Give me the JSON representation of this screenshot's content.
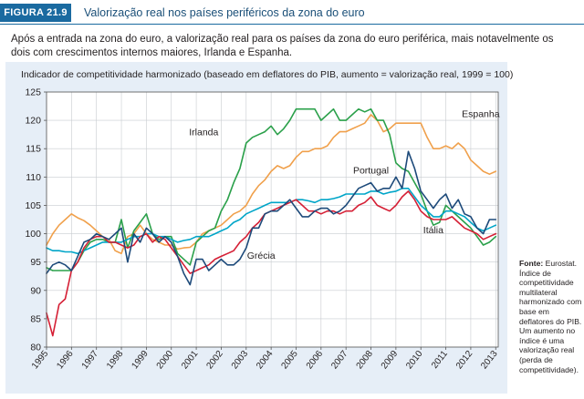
{
  "figure": {
    "label": "FIGURA 21.9",
    "title": "Valorização real nos países periféricos da zona do euro"
  },
  "intro": "Após a entrada na zona do euro, a valorização real para os países da zona do euro periférica, mais notavelmente os dois com crescimentos internos maiores, Irlanda e Espanha.",
  "note": {
    "source_label": "Fonte:",
    "source_text": " Eurostat. Índice de competitividade multilateral harmonizado com base em deflatores do PIB. Um aumento no índice é uma valorização real (perda de competitividade)."
  },
  "chart_data": {
    "type": "line",
    "title": "Indicador de competitividade harmonizado (baseado em deflatores do PIB, aumento = valorização real, 1999 = 100)",
    "xlabel": "",
    "ylabel": "",
    "xlim": [
      1995,
      2013.1
    ],
    "ylim": [
      80,
      125
    ],
    "x_ticks": [
      1995,
      1996,
      1997,
      1998,
      1999,
      2000,
      2001,
      2002,
      2003,
      2004,
      2005,
      2006,
      2007,
      2008,
      2009,
      2010,
      2011,
      2012,
      2013
    ],
    "x_tick_labels": [
      "1995",
      "1996",
      "1997",
      "1998",
      "1999",
      "2000",
      "2001",
      "2002",
      "2003",
      "2004",
      "2005",
      "2006",
      "2007",
      "2008",
      "2009",
      "2010",
      "2011",
      "2012",
      "2013"
    ],
    "y_ticks": [
      80,
      85,
      90,
      95,
      100,
      105,
      110,
      115,
      120,
      125
    ],
    "y_tick_labels": [
      "80",
      "85",
      "90",
      "95",
      "100",
      "105",
      "110",
      "115",
      "120",
      "125"
    ],
    "grid": true,
    "series": [
      {
        "name": "Espanha",
        "color": "#f0a04b",
        "x": [
          1995,
          1995.25,
          1995.5,
          1995.75,
          1996,
          1996.25,
          1996.5,
          1996.75,
          1997,
          1997.25,
          1997.5,
          1997.75,
          1998,
          1998.25,
          1998.5,
          1998.75,
          1999,
          1999.25,
          1999.5,
          1999.75,
          2000,
          2000.25,
          2000.5,
          2000.75,
          2001,
          2001.25,
          2001.5,
          2001.75,
          2002,
          2002.25,
          2002.5,
          2002.75,
          2003,
          2003.25,
          2003.5,
          2003.75,
          2004,
          2004.25,
          2004.5,
          2004.75,
          2005,
          2005.25,
          2005.5,
          2005.75,
          2006,
          2006.25,
          2006.5,
          2006.75,
          2007,
          2007.25,
          2007.5,
          2007.75,
          2008,
          2008.25,
          2008.5,
          2008.75,
          2009,
          2009.25,
          2009.5,
          2009.75,
          2010,
          2010.25,
          2010.5,
          2010.75,
          2011,
          2011.25,
          2011.5,
          2011.75,
          2012,
          2012.25,
          2012.5,
          2012.75,
          2013
        ],
        "values": [
          98,
          100,
          101.5,
          102.5,
          103.5,
          102.8,
          102.3,
          101.5,
          100.5,
          99.5,
          99,
          97,
          96.5,
          99.5,
          100,
          101.5,
          100,
          99,
          98.5,
          98,
          98,
          97.3,
          97.5,
          97.6,
          98.5,
          100,
          100.5,
          101,
          101.5,
          102.5,
          103.5,
          104,
          105,
          107,
          108.5,
          109.5,
          111,
          112,
          111.5,
          112,
          113.5,
          114.5,
          114.5,
          115,
          115,
          115.5,
          117,
          118,
          118,
          118.5,
          119,
          119.5,
          121,
          120,
          118,
          118.5,
          119.5,
          119.5,
          119.5,
          119.5,
          119.5,
          117,
          115,
          115,
          115.5,
          115,
          116,
          115,
          113,
          112,
          111,
          110.5,
          111
        ]
      },
      {
        "name": "Irlanda",
        "color": "#2aa04a",
        "x": [
          1995,
          1995.25,
          1995.5,
          1995.75,
          1996,
          1996.25,
          1996.5,
          1996.75,
          1997,
          1997.25,
          1997.5,
          1997.75,
          1998,
          1998.25,
          1998.5,
          1998.75,
          1999,
          1999.25,
          1999.5,
          1999.75,
          2000,
          2000.25,
          2000.5,
          2000.75,
          2001,
          2001.25,
          2001.5,
          2001.75,
          2002,
          2002.25,
          2002.5,
          2002.75,
          2003,
          2003.25,
          2003.5,
          2003.75,
          2004,
          2004.25,
          2004.5,
          2004.75,
          2005,
          2005.25,
          2005.5,
          2005.75,
          2006,
          2006.25,
          2006.5,
          2006.75,
          2007,
          2007.25,
          2007.5,
          2007.75,
          2008,
          2008.25,
          2008.5,
          2008.75,
          2009,
          2009.25,
          2009.5,
          2009.75,
          2010,
          2010.25,
          2010.5,
          2010.75,
          2011,
          2011.25,
          2011.5,
          2011.75,
          2012,
          2012.25,
          2012.5,
          2012.75,
          2013
        ],
        "values": [
          94,
          93.5,
          93.5,
          93.5,
          93.5,
          95,
          97,
          98.5,
          99,
          99,
          98.5,
          98.5,
          102.5,
          97.5,
          100.5,
          102,
          103.5,
          100,
          99,
          99.5,
          99.5,
          96.5,
          95.5,
          94.5,
          98.5,
          99.5,
          100.5,
          101,
          104,
          106,
          109,
          111.5,
          116,
          117,
          117.5,
          118,
          119,
          117.5,
          118.5,
          120,
          122,
          122,
          122,
          122,
          120,
          121,
          122,
          120,
          120,
          121,
          122,
          121.5,
          122,
          120,
          120,
          117.5,
          112.5,
          111.5,
          111,
          109,
          107,
          104,
          101.5,
          102,
          105,
          104,
          103,
          102,
          101,
          99.5,
          98,
          98.5,
          99.5
        ]
      },
      {
        "name": "Portugal",
        "color": "#00a5c8",
        "x": [
          1995,
          1995.25,
          1995.5,
          1995.75,
          1996,
          1996.25,
          1996.5,
          1996.75,
          1997,
          1997.25,
          1997.5,
          1997.75,
          1998,
          1998.25,
          1998.5,
          1998.75,
          1999,
          1999.25,
          1999.5,
          1999.75,
          2000,
          2000.25,
          2000.5,
          2000.75,
          2001,
          2001.25,
          2001.5,
          2001.75,
          2002,
          2002.25,
          2002.5,
          2002.75,
          2003,
          2003.25,
          2003.5,
          2003.75,
          2004,
          2004.25,
          2004.5,
          2004.75,
          2005,
          2005.25,
          2005.5,
          2005.75,
          2006,
          2006.25,
          2006.5,
          2006.75,
          2007,
          2007.25,
          2007.5,
          2007.75,
          2008,
          2008.25,
          2008.5,
          2008.75,
          2009,
          2009.25,
          2009.5,
          2009.75,
          2010,
          2010.25,
          2010.5,
          2010.75,
          2011,
          2011.25,
          2011.5,
          2011.75,
          2012,
          2012.25,
          2012.5,
          2012.75,
          2013
        ],
        "values": [
          97.5,
          97,
          97,
          96.8,
          96.8,
          96.5,
          97,
          97.5,
          98,
          98.5,
          98.5,
          98.5,
          98.5,
          99,
          99.5,
          99.5,
          100,
          100,
          99.5,
          99.5,
          99,
          98.5,
          98.8,
          99,
          99.5,
          99.5,
          99.5,
          100,
          100.5,
          101,
          102,
          102.5,
          103.5,
          104,
          104.5,
          105,
          105.5,
          105.5,
          105.5,
          105.5,
          106,
          106,
          105.8,
          105.5,
          106,
          106,
          106.2,
          106.5,
          107,
          107,
          107,
          107,
          107.5,
          107.5,
          107,
          107.3,
          107.5,
          108,
          108,
          106.5,
          105,
          104,
          103,
          103,
          104,
          104,
          103.5,
          103,
          102,
          101,
          100.5,
          101,
          101.5
        ]
      },
      {
        "name": "Grécia",
        "color": "#d51f35",
        "x": [
          1995,
          1995.25,
          1995.5,
          1995.75,
          1996,
          1996.25,
          1996.5,
          1996.75,
          1997,
          1997.25,
          1997.5,
          1997.75,
          1998,
          1998.25,
          1998.5,
          1998.75,
          1999,
          1999.25,
          1999.5,
          1999.75,
          2000,
          2000.25,
          2000.5,
          2000.75,
          2001,
          2001.25,
          2001.5,
          2001.75,
          2002,
          2002.25,
          2002.5,
          2002.75,
          2003,
          2003.25,
          2003.5,
          2003.75,
          2004,
          2004.25,
          2004.5,
          2004.75,
          2005,
          2005.25,
          2005.5,
          2005.75,
          2006,
          2006.25,
          2006.5,
          2006.75,
          2007,
          2007.25,
          2007.5,
          2007.75,
          2008,
          2008.25,
          2008.5,
          2008.75,
          2009,
          2009.25,
          2009.5,
          2009.75,
          2010,
          2010.25,
          2010.5,
          2010.75,
          2011,
          2011.25,
          2011.5,
          2011.75,
          2012,
          2012.25,
          2012.5,
          2012.75,
          2013
        ],
        "values": [
          86,
          82,
          87.5,
          88.5,
          93.5,
          95,
          97.5,
          99,
          99.5,
          99.5,
          98.5,
          98.5,
          98,
          97.5,
          98,
          99.5,
          100,
          98.5,
          99.5,
          99,
          97.5,
          96,
          94.5,
          93,
          93.5,
          94,
          94.5,
          95.5,
          96,
          96.5,
          97,
          98.5,
          99.5,
          101,
          102,
          103.5,
          104,
          104.5,
          105,
          105.5,
          106,
          105,
          104,
          104,
          103.5,
          104,
          104,
          103.5,
          104,
          104,
          105,
          105.5,
          106.5,
          105,
          104.5,
          104,
          105,
          106.5,
          107.5,
          106,
          104,
          103,
          102.5,
          102.5,
          102.5,
          103,
          102,
          101,
          100.5,
          100,
          99,
          99.5,
          100
        ]
      },
      {
        "name": "Itália",
        "color": "#1d4a7a",
        "x": [
          1995,
          1995.25,
          1995.5,
          1995.75,
          1996,
          1996.25,
          1996.5,
          1996.75,
          1997,
          1997.25,
          1997.5,
          1997.75,
          1998,
          1998.25,
          1998.5,
          1998.75,
          1999,
          1999.25,
          1999.5,
          1999.75,
          2000,
          2000.25,
          2000.5,
          2000.75,
          2001,
          2001.25,
          2001.5,
          2001.75,
          2002,
          2002.25,
          2002.5,
          2002.75,
          2003,
          2003.25,
          2003.5,
          2003.75,
          2004,
          2004.25,
          2004.5,
          2004.75,
          2005,
          2005.25,
          2005.5,
          2005.75,
          2006,
          2006.25,
          2006.5,
          2006.75,
          2007,
          2007.25,
          2007.5,
          2007.75,
          2008,
          2008.25,
          2008.5,
          2008.75,
          2009,
          2009.25,
          2009.5,
          2009.75,
          2010,
          2010.25,
          2010.5,
          2010.75,
          2011,
          2011.25,
          2011.5,
          2011.75,
          2012,
          2012.25,
          2012.5,
          2012.75,
          2013
        ],
        "values": [
          93,
          94.5,
          95,
          94.5,
          93.5,
          96,
          98.5,
          99,
          100,
          99.5,
          99,
          100,
          101,
          95,
          100,
          98.5,
          101,
          100,
          98.5,
          99.5,
          98.5,
          96,
          93,
          91,
          95.5,
          95.5,
          93.5,
          94.5,
          95.5,
          94.5,
          94.5,
          95.5,
          97.5,
          101,
          101,
          103.5,
          104,
          104,
          105,
          106,
          104.5,
          103,
          103,
          104,
          104.5,
          104.5,
          103.5,
          104,
          105,
          106.5,
          108,
          108.5,
          109,
          107.5,
          108,
          108,
          110,
          108,
          114.5,
          111.5,
          107.5,
          106,
          104.5,
          106,
          107,
          104.5,
          106,
          103.5,
          103,
          101,
          100,
          102.5,
          102.5
        ]
      }
    ],
    "annotations": [
      {
        "text": "Irlanda",
        "series": "Irlanda",
        "x": 2001.3,
        "y": 117.4
      },
      {
        "text": "Espanha",
        "series": "Espanha",
        "x": 2012.4,
        "y": 120.6
      },
      {
        "text": "Portugal",
        "series": "Portugal",
        "x": 2008.0,
        "y": 110.6
      },
      {
        "text": "Itália",
        "series": "Itália",
        "x": 2010.5,
        "y": 100.1
      },
      {
        "text": "Grécia",
        "series": "Grécia",
        "x": 2003.6,
        "y": 95.6
      }
    ]
  }
}
